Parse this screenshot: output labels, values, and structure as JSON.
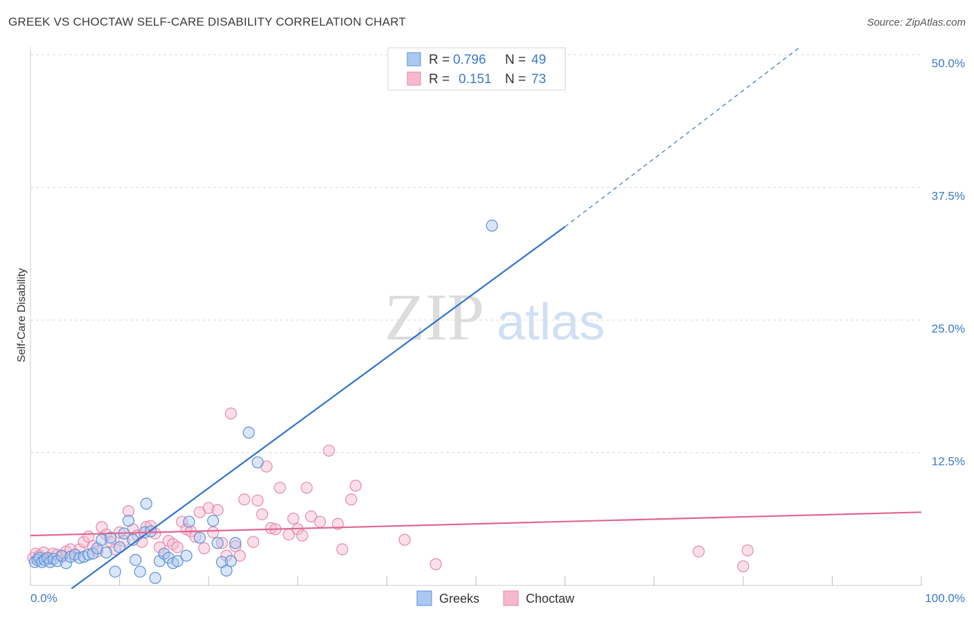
{
  "header": {
    "title": "GREEK VS CHOCTAW SELF-CARE DISABILITY CORRELATION CHART",
    "source": "Source: ZipAtlas.com"
  },
  "watermark": {
    "zip": "ZIP",
    "atlas": "atlas"
  },
  "legend": {
    "rows": [
      {
        "r_label": "R =",
        "r_value": "0.796",
        "n_label": "N =",
        "n_value": "49"
      },
      {
        "r_label": "R =",
        "r_value": "0.151",
        "n_label": "N =",
        "n_value": "73"
      }
    ]
  },
  "bottom_legend": {
    "items": [
      "Greeks",
      "Choctaw"
    ]
  },
  "colors": {
    "greek_fill": "#aac8f0",
    "greek_stroke": "#5b8fd8",
    "greek_line": "#2f73cc",
    "choctaw_fill": "#f6b8cc",
    "choctaw_stroke": "#e58aa8",
    "choctaw_line": "#e0668e",
    "tick": "#3b78c9",
    "grid": "#d8d8d8"
  },
  "chart_data": {
    "type": "scatter",
    "title": "GREEK VS CHOCTAW SELF-CARE DISABILITY CORRELATION CHART",
    "xlabel": "",
    "ylabel": "Self-Care Disability",
    "xlim": [
      0,
      100
    ],
    "ylim": [
      0,
      50
    ],
    "x_tick_labels": [
      {
        "value": 0,
        "label": "0.0%"
      },
      {
        "value": 100,
        "label": "100.0%"
      }
    ],
    "y_tick_labels": [
      {
        "value": 12.5,
        "label": "12.5%"
      },
      {
        "value": 25,
        "label": "25.0%"
      },
      {
        "value": 37.5,
        "label": "37.5%"
      },
      {
        "value": 50,
        "label": "50.0%"
      }
    ],
    "series": [
      {
        "name": "Greeks",
        "R": 0.796,
        "N": 49,
        "trend": {
          "x0": 4.6,
          "y0": -0.3,
          "x1": 60,
          "y1": 33.8,
          "dash_to_x": 86.5,
          "dash_to_y": 50.8
        },
        "points": [
          [
            0.5,
            2.2
          ],
          [
            0.8,
            2.4
          ],
          [
            1.0,
            2.6
          ],
          [
            1.3,
            2.2
          ],
          [
            1.6,
            2.4
          ],
          [
            1.9,
            2.6
          ],
          [
            2.2,
            2.2
          ],
          [
            2.6,
            2.5
          ],
          [
            3.0,
            2.3
          ],
          [
            3.5,
            2.8
          ],
          [
            4.0,
            2.1
          ],
          [
            4.5,
            2.7
          ],
          [
            5.0,
            2.9
          ],
          [
            5.5,
            2.6
          ],
          [
            6.0,
            2.7
          ],
          [
            6.5,
            2.9
          ],
          [
            7.0,
            3.0
          ],
          [
            7.5,
            3.5
          ],
          [
            8.0,
            4.3
          ],
          [
            8.5,
            3.1
          ],
          [
            9.0,
            4.5
          ],
          [
            9.5,
            1.3
          ],
          [
            10.0,
            3.6
          ],
          [
            10.5,
            4.9
          ],
          [
            11.0,
            6.1
          ],
          [
            11.5,
            4.3
          ],
          [
            11.8,
            2.4
          ],
          [
            12.3,
            1.3
          ],
          [
            12.8,
            5.0
          ],
          [
            13.0,
            7.7
          ],
          [
            13.5,
            5.1
          ],
          [
            14.0,
            0.7
          ],
          [
            14.5,
            2.3
          ],
          [
            15.0,
            3.0
          ],
          [
            15.5,
            2.6
          ],
          [
            16.0,
            2.1
          ],
          [
            16.5,
            2.3
          ],
          [
            17.5,
            2.8
          ],
          [
            17.8,
            6.0
          ],
          [
            19.0,
            4.5
          ],
          [
            20.5,
            6.1
          ],
          [
            21.0,
            4.0
          ],
          [
            21.5,
            2.2
          ],
          [
            22.0,
            1.4
          ],
          [
            22.5,
            2.3
          ],
          [
            23.0,
            4.0
          ],
          [
            24.5,
            14.4
          ],
          [
            25.5,
            11.6
          ],
          [
            51.8,
            33.9
          ]
        ]
      },
      {
        "name": "Choctaw",
        "R": 0.151,
        "N": 73,
        "trend": {
          "x0": 0,
          "y0": 4.7,
          "x1": 100,
          "y1": 6.9
        },
        "points": [
          [
            0.3,
            2.6
          ],
          [
            0.6,
            3.0
          ],
          [
            1.0,
            2.8
          ],
          [
            1.5,
            3.1
          ],
          [
            2.0,
            2.5
          ],
          [
            2.5,
            3.0
          ],
          [
            3.0,
            2.9
          ],
          [
            3.5,
            2.7
          ],
          [
            4.0,
            3.2
          ],
          [
            4.5,
            3.4
          ],
          [
            5.0,
            2.9
          ],
          [
            5.5,
            3.4
          ],
          [
            6.0,
            4.1
          ],
          [
            6.5,
            4.6
          ],
          [
            7.0,
            3.7
          ],
          [
            7.5,
            3.2
          ],
          [
            8.0,
            5.5
          ],
          [
            8.5,
            4.8
          ],
          [
            9.0,
            4.1
          ],
          [
            9.5,
            3.4
          ],
          [
            10.0,
            5.0
          ],
          [
            10.5,
            4.2
          ],
          [
            11.0,
            7.0
          ],
          [
            11.5,
            5.3
          ],
          [
            12.0,
            4.7
          ],
          [
            12.5,
            4.1
          ],
          [
            13.0,
            5.5
          ],
          [
            13.5,
            5.6
          ],
          [
            14.0,
            4.9
          ],
          [
            14.5,
            3.6
          ],
          [
            15.0,
            3.0
          ],
          [
            15.5,
            4.2
          ],
          [
            16.0,
            3.9
          ],
          [
            16.5,
            3.6
          ],
          [
            17.0,
            6.0
          ],
          [
            17.5,
            5.3
          ],
          [
            18.0,
            5.1
          ],
          [
            18.5,
            4.6
          ],
          [
            19.0,
            6.9
          ],
          [
            19.5,
            3.5
          ],
          [
            20.0,
            7.3
          ],
          [
            20.5,
            5.0
          ],
          [
            21.0,
            7.1
          ],
          [
            21.5,
            4.0
          ],
          [
            22.0,
            2.8
          ],
          [
            22.5,
            16.2
          ],
          [
            23.0,
            3.7
          ],
          [
            23.5,
            2.8
          ],
          [
            24.0,
            8.1
          ],
          [
            25.0,
            4.1
          ],
          [
            25.5,
            8.0
          ],
          [
            26.0,
            6.7
          ],
          [
            26.5,
            11.2
          ],
          [
            27.0,
            5.4
          ],
          [
            27.5,
            5.3
          ],
          [
            28.0,
            9.2
          ],
          [
            29.0,
            4.8
          ],
          [
            29.5,
            6.3
          ],
          [
            30.0,
            5.3
          ],
          [
            30.5,
            4.7
          ],
          [
            31.0,
            9.2
          ],
          [
            31.5,
            6.5
          ],
          [
            32.5,
            6.0
          ],
          [
            33.5,
            12.7
          ],
          [
            34.5,
            5.8
          ],
          [
            35.0,
            3.4
          ],
          [
            36.0,
            8.1
          ],
          [
            36.5,
            9.4
          ],
          [
            42.0,
            4.3
          ],
          [
            45.5,
            2.0
          ],
          [
            75.0,
            3.2
          ],
          [
            80.0,
            1.8
          ],
          [
            80.5,
            3.3
          ]
        ]
      }
    ]
  }
}
